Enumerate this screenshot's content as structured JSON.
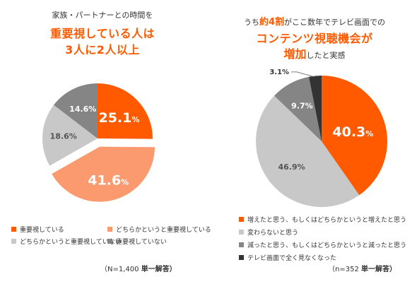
{
  "colors": {
    "orange": "#ff5a00",
    "light_orange": "#fa9a6e",
    "light_gray": "#c8c8c8",
    "dark_gray": "#858585",
    "black": "#333333"
  },
  "chart_data": [
    {
      "type": "pie",
      "title_line1": "家族・パートナーとの時間を",
      "title_line2": "重要視している人は",
      "title_line3": "3人に2人以上",
      "slices": [
        {
          "label": "重要視している",
          "value": 25.1,
          "display": "25.1",
          "color": "#ff5a00"
        },
        {
          "label": "どちらかというと重要視している",
          "value": 41.6,
          "display": "41.6",
          "color": "#fa9a6e"
        },
        {
          "label": "どちらかというと重要視していない",
          "value": 18.6,
          "display": "18.6%",
          "color": "#c8c8c8"
        },
        {
          "label": "重要視していない",
          "value": 14.6,
          "display": "14.6%",
          "color": "#858585"
        }
      ],
      "percent_sign": "%",
      "note_n": "（N=1,400",
      "note_type": "単一解答）"
    },
    {
      "type": "pie",
      "title_line1_pre": "うち",
      "title_line1_hl": "約4割",
      "title_line1_post": "がここ数年でテレビ画面での",
      "title_line2": "コンテンツ視聴機会が",
      "title_line3_hl": "増加",
      "title_line3_post": "したと実感",
      "slices": [
        {
          "label": "増えたと思う、もしくはどちらかというと増えたと思う",
          "value": 40.3,
          "display": "40.3",
          "color": "#ff5a00"
        },
        {
          "label": "変わらないと思う",
          "value": 46.9,
          "display": "46.9%",
          "color": "#c8c8c8"
        },
        {
          "label": "減ったと思う、もしくはどちらかというと減ったと思う",
          "value": 9.7,
          "display": "9.7%",
          "color": "#858585"
        },
        {
          "label": "テレビ画面で全く見なくなった",
          "value": 3.1,
          "display": "3.1%",
          "color": "#333333"
        }
      ],
      "percent_sign": "%",
      "note_n": "（n=352",
      "note_type": "単一解答）"
    }
  ]
}
